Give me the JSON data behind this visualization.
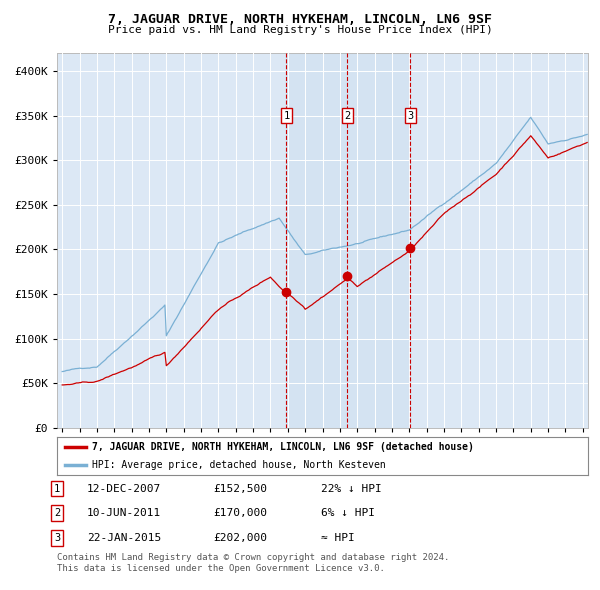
{
  "title": "7, JAGUAR DRIVE, NORTH HYKEHAM, LINCOLN, LN6 9SF",
  "subtitle": "Price paid vs. HM Land Registry's House Price Index (HPI)",
  "legend_line1": "7, JAGUAR DRIVE, NORTH HYKEHAM, LINCOLN, LN6 9SF (detached house)",
  "legend_line2": "HPI: Average price, detached house, North Kesteven",
  "footer1": "Contains HM Land Registry data © Crown copyright and database right 2024.",
  "footer2": "This data is licensed under the Open Government Licence v3.0.",
  "sale_color": "#cc0000",
  "hpi_color": "#7ab0d4",
  "annotation_box_color": "#cc0000",
  "background_color": "#dce8f5",
  "shade_color": "#ccdff0",
  "annotations": [
    {
      "num": 1,
      "date": "12-DEC-2007",
      "price": "£152,500",
      "rel": "22% ↓ HPI",
      "x_year": 2007.917
    },
    {
      "num": 2,
      "date": "10-JUN-2011",
      "price": "£170,000",
      "rel": "6% ↓ HPI",
      "x_year": 2011.44
    },
    {
      "num": 3,
      "date": "22-JAN-2015",
      "price": "£202,000",
      "rel": "≈ HPI",
      "x_year": 2015.06
    }
  ],
  "ylim": [
    0,
    420000
  ],
  "xlim": [
    1994.7,
    2025.3
  ],
  "yticks": [
    0,
    50000,
    100000,
    150000,
    200000,
    250000,
    300000,
    350000,
    400000
  ],
  "ytick_labels": [
    "£0",
    "£50K",
    "£100K",
    "£150K",
    "£200K",
    "£250K",
    "£300K",
    "£350K",
    "£400K"
  ],
  "xticks": [
    1995,
    1996,
    1997,
    1998,
    1999,
    2000,
    2001,
    2002,
    2003,
    2004,
    2005,
    2006,
    2007,
    2008,
    2009,
    2010,
    2011,
    2012,
    2013,
    2014,
    2015,
    2016,
    2017,
    2018,
    2019,
    2020,
    2021,
    2022,
    2023,
    2024,
    2025
  ]
}
